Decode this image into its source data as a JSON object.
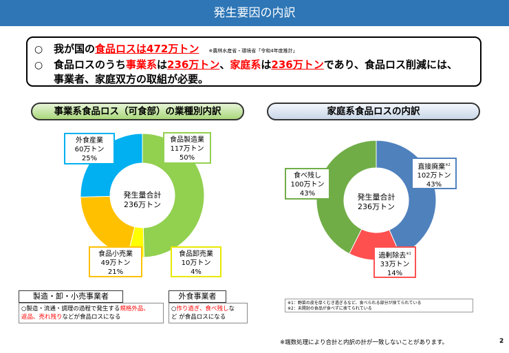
{
  "title": "発生要因の内訳",
  "summary": {
    "bullet1_symbol": "○",
    "bullet2_symbol": "○",
    "line1_prefix": "我が国の",
    "line1_highlight": "食品ロスは472万トン",
    "source": "※農林水産省・環境省「令和4年度推計」",
    "line2_a": "食品ロスのうち",
    "line2_b": "事業系",
    "line2_c": "は",
    "line2_d": "236万トン",
    "line2_e": "、",
    "line2_f": "家庭系",
    "line2_g": "は",
    "line2_h": "236万トン",
    "line2_i": "であり、食品ロス削減には、",
    "line3": "事業者、家庭双方の取組が必要。"
  },
  "left_section": {
    "header": "事業系食品ロス（可食部）の業種別内訳",
    "center_line1": "発生量合計",
    "center_line2": "236万トン"
  },
  "right_section": {
    "header": "家庭系食品ロスの内訳",
    "center_line1": "発生量合計",
    "center_line2": "236万トン"
  },
  "colors": {
    "title_bar": "#2e76b6",
    "green": "#92d050",
    "yellow": "#ffff00",
    "orange": "#ffc000",
    "blue": "#00b0f0",
    "home_blue": "#4f81bd",
    "home_red": "#ff5050",
    "home_green": "#70ad47"
  },
  "chart_data": [
    {
      "type": "pie",
      "categories": [
        "食品製造業",
        "食品卸売業",
        "食品小売業",
        "外食産業"
      ],
      "values": [
        117,
        10,
        49,
        60
      ],
      "units": "万トン",
      "percents": [
        "50%",
        "4%",
        "21%",
        "25%"
      ],
      "labels": [
        {
          "name": "食品製造業",
          "amount": "117万トン",
          "pct": "50%"
        },
        {
          "name": "食品卸売業",
          "amount": "10万トン",
          "pct": "4%"
        },
        {
          "name": "食品小売業",
          "amount": "49万トン",
          "pct": "21%"
        },
        {
          "name": "外食産業",
          "amount": "60万トン",
          "pct": "25%"
        }
      ]
    },
    {
      "type": "pie",
      "categories": [
        "直接廃棄",
        "過剰除去",
        "食べ残し"
      ],
      "values": [
        102,
        33,
        100
      ],
      "units": "万トン",
      "percents": [
        "43%",
        "14%",
        "43%"
      ],
      "labels": [
        {
          "name": "直接廃棄",
          "mark": "※2",
          "amount": "102万トン",
          "pct": "43%"
        },
        {
          "name": "過剰除去",
          "mark": "※1",
          "amount": "33万トン",
          "pct": "14%"
        },
        {
          "name": "食べ残し",
          "mark": "",
          "amount": "100万トン",
          "pct": "43%"
        }
      ]
    }
  ],
  "notes": {
    "manufacturing_head": "製造・卸・小売事業者",
    "manufacturing_a": "○製造・流通・調理の過程で発生する",
    "manufacturing_b": "規格外品、",
    "manufacturing_c": "返品、売れ残り",
    "manufacturing_d": "などが食品ロスになる",
    "restaurant_head": "外食事業者",
    "restaurant_a": "○",
    "restaurant_b": "作り過ぎ、食べ残し",
    "restaurant_c": "な",
    "restaurant_d": "ど が食品ロスになる"
  },
  "footnotes": {
    "f1": "※1：野菜の皮を厚くむき過ぎるなど、食べられる部分が捨てられている",
    "f2": "※2：未開封の食品が食べずに捨てられている"
  },
  "bottom_note": "※端数処理により合計と内訳の計が一致しないことがあります。",
  "page_number": "2"
}
